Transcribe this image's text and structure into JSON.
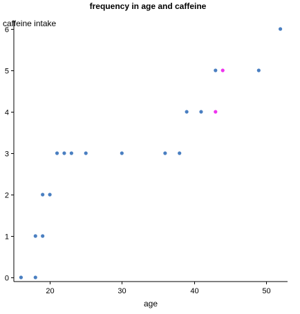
{
  "chart_data": {
    "type": "scatter",
    "title": "frequency in age and caffeine",
    "xlabel": "age",
    "ylabel": "caffeine intake",
    "xlim": [
      15,
      53
    ],
    "ylim": [
      -0.1,
      6.2
    ],
    "xticks": [
      20,
      30,
      40,
      50
    ],
    "yticks": [
      0,
      1,
      2,
      3,
      4,
      5,
      6
    ],
    "grid": false,
    "series": [
      {
        "color": "#4a7fc1",
        "points": [
          {
            "x": 16,
            "y": 0
          },
          {
            "x": 18,
            "y": 0
          },
          {
            "x": 18,
            "y": 1
          },
          {
            "x": 19,
            "y": 1
          },
          {
            "x": 19,
            "y": 2
          },
          {
            "x": 20,
            "y": 2
          },
          {
            "x": 21,
            "y": 3
          },
          {
            "x": 22,
            "y": 3
          },
          {
            "x": 23,
            "y": 3
          },
          {
            "x": 25,
            "y": 3
          },
          {
            "x": 30,
            "y": 3
          },
          {
            "x": 36,
            "y": 3
          },
          {
            "x": 38,
            "y": 3
          },
          {
            "x": 39,
            "y": 4
          },
          {
            "x": 41,
            "y": 4
          },
          {
            "x": 43,
            "y": 5
          },
          {
            "x": 49,
            "y": 5
          },
          {
            "x": 52,
            "y": 6
          }
        ]
      },
      {
        "color": "#ee33ee",
        "points": [
          {
            "x": 43,
            "y": 4
          },
          {
            "x": 44,
            "y": 5
          }
        ]
      }
    ]
  }
}
